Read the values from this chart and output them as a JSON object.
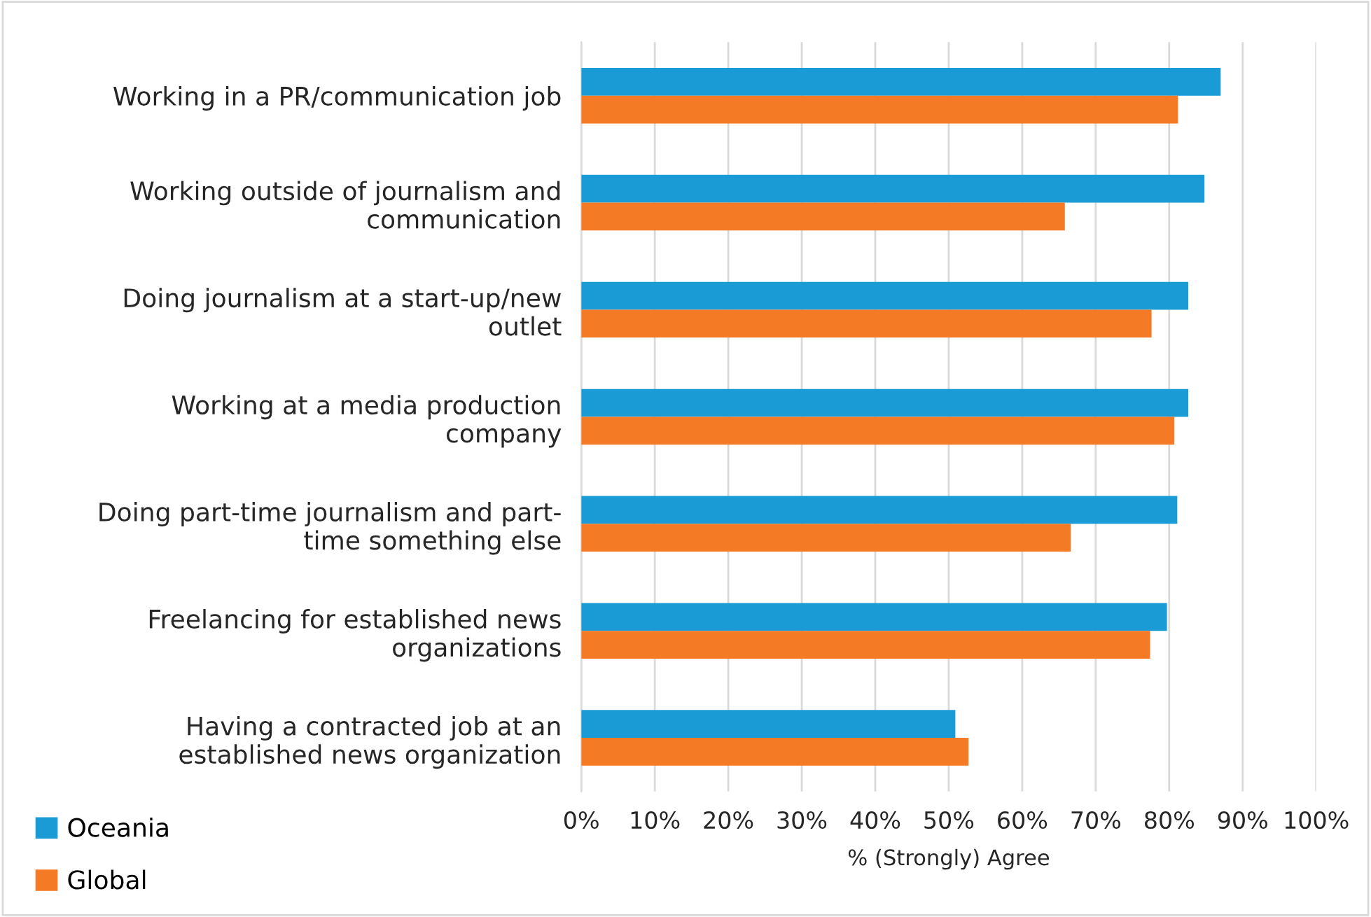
{
  "chart_data": {
    "type": "bar",
    "orientation": "horizontal",
    "xlabel": "% (Strongly) Agree",
    "categories": [
      "Working in a PR/communication job",
      "Working outside of journalism and\ncommunication",
      "Doing journalism at a start-up/new\noutlet",
      "Working at a media production\ncompany",
      "Doing part-time journalism and part-\ntime something else",
      "Freelancing for established news\norganizations",
      "Having a contracted job at an\nestablished news organization"
    ],
    "series": [
      {
        "name": "Oceania",
        "color": "#1a9bd5",
        "values": [
          87.0,
          84.8,
          82.6,
          82.6,
          81.1,
          79.7,
          50.9
        ]
      },
      {
        "name": "Global",
        "color": "#f47a25",
        "values": [
          81.2,
          65.8,
          77.6,
          80.7,
          66.6,
          77.4,
          52.7
        ]
      }
    ],
    "xlim": [
      0,
      100
    ],
    "xticks": [
      {
        "value": 0,
        "label": "0%"
      },
      {
        "value": 10,
        "label": "10%"
      },
      {
        "value": 20,
        "label": "20%"
      },
      {
        "value": 30,
        "label": "30%"
      },
      {
        "value": 40,
        "label": "40%"
      },
      {
        "value": 50,
        "label": "50%"
      },
      {
        "value": 60,
        "label": "60%"
      },
      {
        "value": 70,
        "label": "70%"
      },
      {
        "value": 80,
        "label": "80%"
      },
      {
        "value": 90,
        "label": "90%"
      },
      {
        "value": 100,
        "label": "100%"
      }
    ],
    "grid": "x",
    "legend": "bottom left"
  }
}
